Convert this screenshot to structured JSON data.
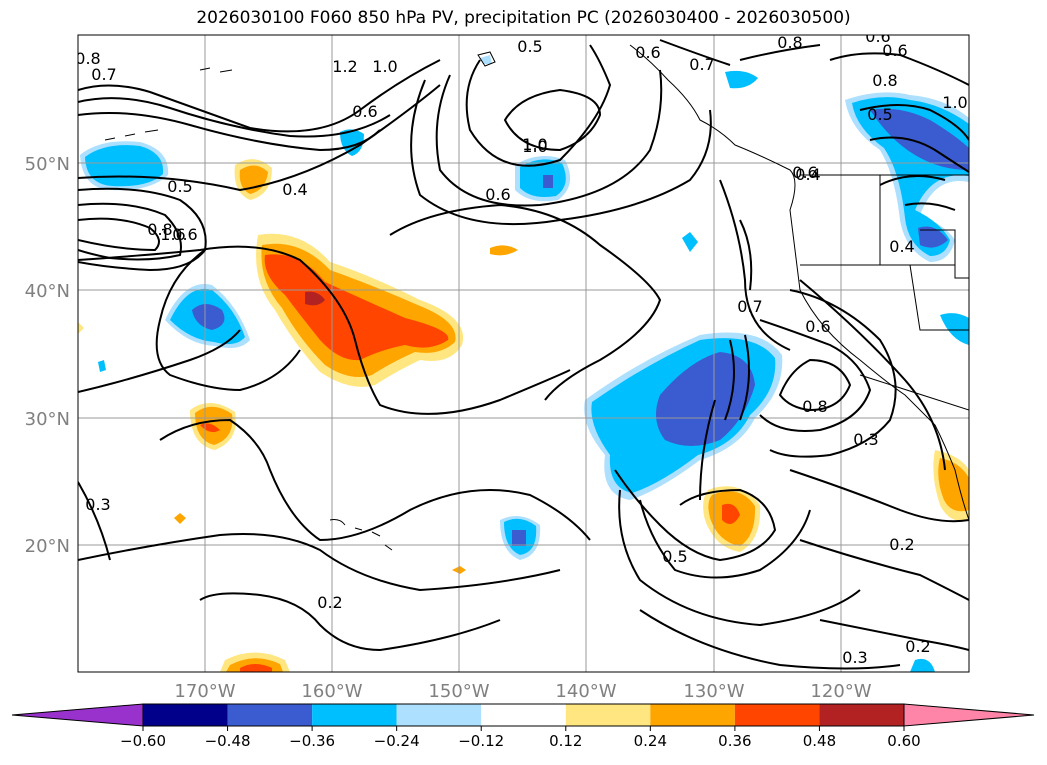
{
  "title": "2026030100 F060 850 hPa PV, precipitation PC (2026030400 - 2026030500)",
  "latitude_labels": [
    "50°N",
    "40°N",
    "30°N",
    "20°N"
  ],
  "longitude_labels": [
    "170°W",
    "160°W",
    "150°W",
    "140°W",
    "130°W",
    "120°W"
  ],
  "contour_labels": [
    "0.5",
    "0.6",
    "1.0",
    "0.6",
    "0.8",
    "0.6",
    "0.8",
    "1.0",
    "0.6",
    "0.5",
    "0.8",
    "0.7",
    "1.2",
    "1.0",
    "0.7",
    "0.6",
    "1.0",
    "0.6",
    "0.4",
    "0.5",
    "0.8",
    "1.6",
    "0.6",
    "0.4",
    "0.4",
    "0.7",
    "0.6",
    "0.8",
    "0.3",
    "0.5",
    "0.3",
    "0.2",
    "0.2",
    "0.3",
    "0.2"
  ],
  "colorbar": {
    "ticks": [
      "−0.60",
      "−0.48",
      "−0.36",
      "−0.24",
      "−0.12",
      "0.12",
      "0.24",
      "0.36",
      "0.48",
      "0.60"
    ],
    "colors": [
      "#9932CC",
      "#00008B",
      "#3B5BD0",
      "#00BFFF",
      "#ADDFFF",
      "#FFFFFF",
      "#FFE680",
      "#FFA500",
      "#FF4500",
      "#B22222",
      "#FF85A8"
    ]
  },
  "colors": {
    "grid": "#999999",
    "axis_label": "#808080"
  }
}
